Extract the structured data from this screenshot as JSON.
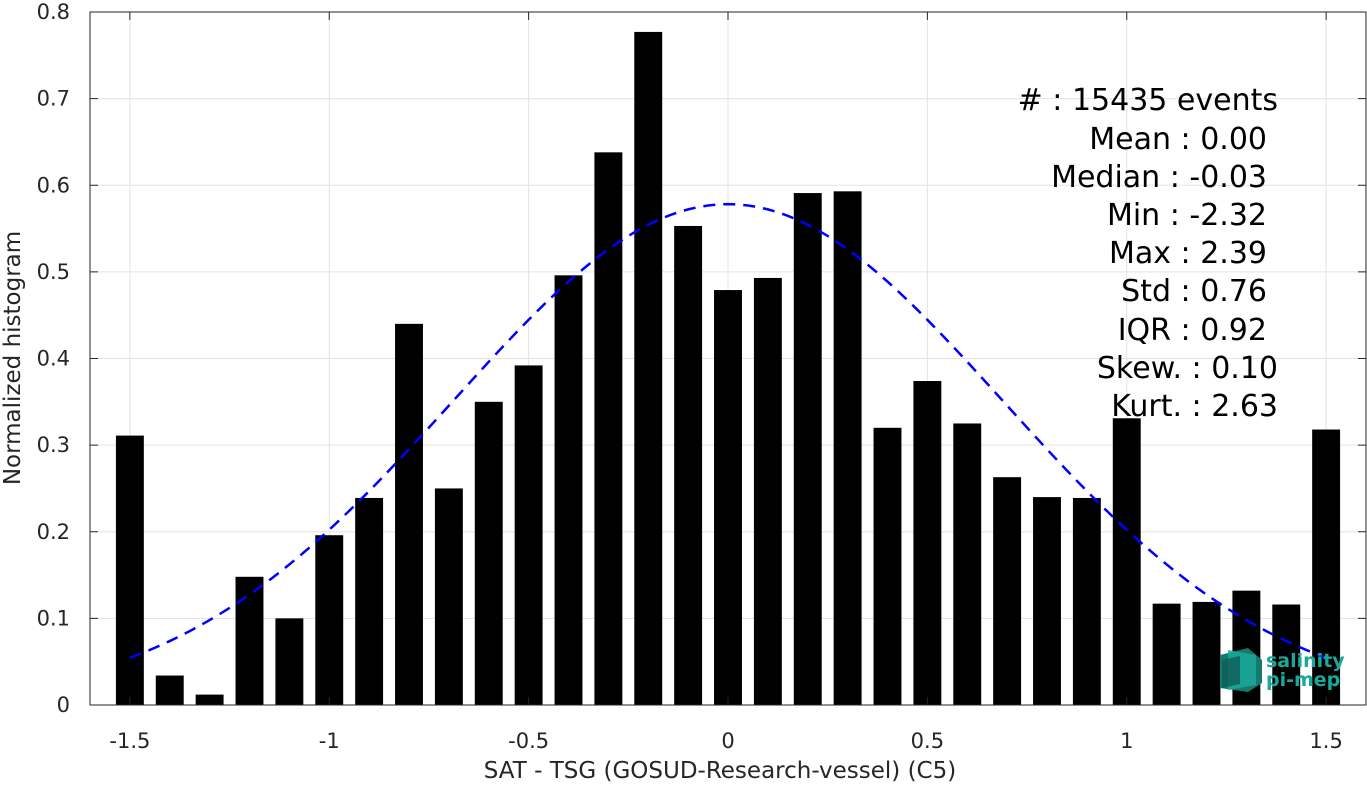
{
  "chart_data": {
    "type": "bar",
    "xlabel": "SAT - TSG (GOSUD-Research-vessel) (C5)",
    "ylabel": "Normalized histogram",
    "xlim": [
      -1.6,
      1.6
    ],
    "ylim": [
      0,
      0.8
    ],
    "xticks": [
      -1.5,
      -1,
      -0.5,
      0,
      0.5,
      1,
      1.5
    ],
    "xtick_labels": [
      "-1.5",
      "-1",
      "-0.5",
      "0",
      "0.5",
      "1",
      "1.5"
    ],
    "yticks": [
      0,
      0.1,
      0.2,
      0.3,
      0.4,
      0.5,
      0.6,
      0.7,
      0.8
    ],
    "ytick_labels": [
      "0",
      "0.1",
      "0.2",
      "0.3",
      "0.4",
      "0.5",
      "0.6",
      "0.7",
      "0.8"
    ],
    "grid": true,
    "bar_color": "#000000",
    "fit_color": "#0000ff",
    "bar_width": 0.07,
    "bins": [
      -1.5,
      -1.4,
      -1.3,
      -1.2,
      -1.1,
      -1.0,
      -0.9,
      -0.8,
      -0.7,
      -0.6,
      -0.5,
      -0.4,
      -0.3,
      -0.2,
      -0.1,
      0.0,
      0.1,
      0.2,
      0.3,
      0.4,
      0.5,
      0.6,
      0.7,
      0.8,
      0.9,
      1.0,
      1.1,
      1.2,
      1.3,
      1.4,
      1.5
    ],
    "values": [
      0.311,
      0.034,
      0.012,
      0.148,
      0.1,
      0.196,
      0.239,
      0.44,
      0.25,
      0.35,
      0.392,
      0.496,
      0.638,
      0.777,
      0.553,
      0.479,
      0.493,
      0.591,
      0.593,
      0.32,
      0.374,
      0.325,
      0.263,
      0.24,
      0.239,
      0.331,
      0.117,
      0.119,
      0.132,
      0.116,
      0.318
    ],
    "fit": {
      "type": "normal",
      "mean": 0.0,
      "std": 0.69,
      "x_range": [
        -1.5,
        1.5
      ],
      "style": "dashed"
    },
    "stats": {
      "events": "#  : 15435 events",
      "mean": "Mean : 0.00",
      "median": "Median : -0.03",
      "min": "Min : -2.32",
      "max": "Max : 2.39",
      "std": "Std : 0.76",
      "iqr": "IQR : 0.92",
      "skew": "Skew. : 0.10",
      "kurt": "Kurt. : 2.63"
    }
  },
  "logo": {
    "line1": "salinity",
    "line2": "pi-mep",
    "color": "#1aa89a"
  }
}
